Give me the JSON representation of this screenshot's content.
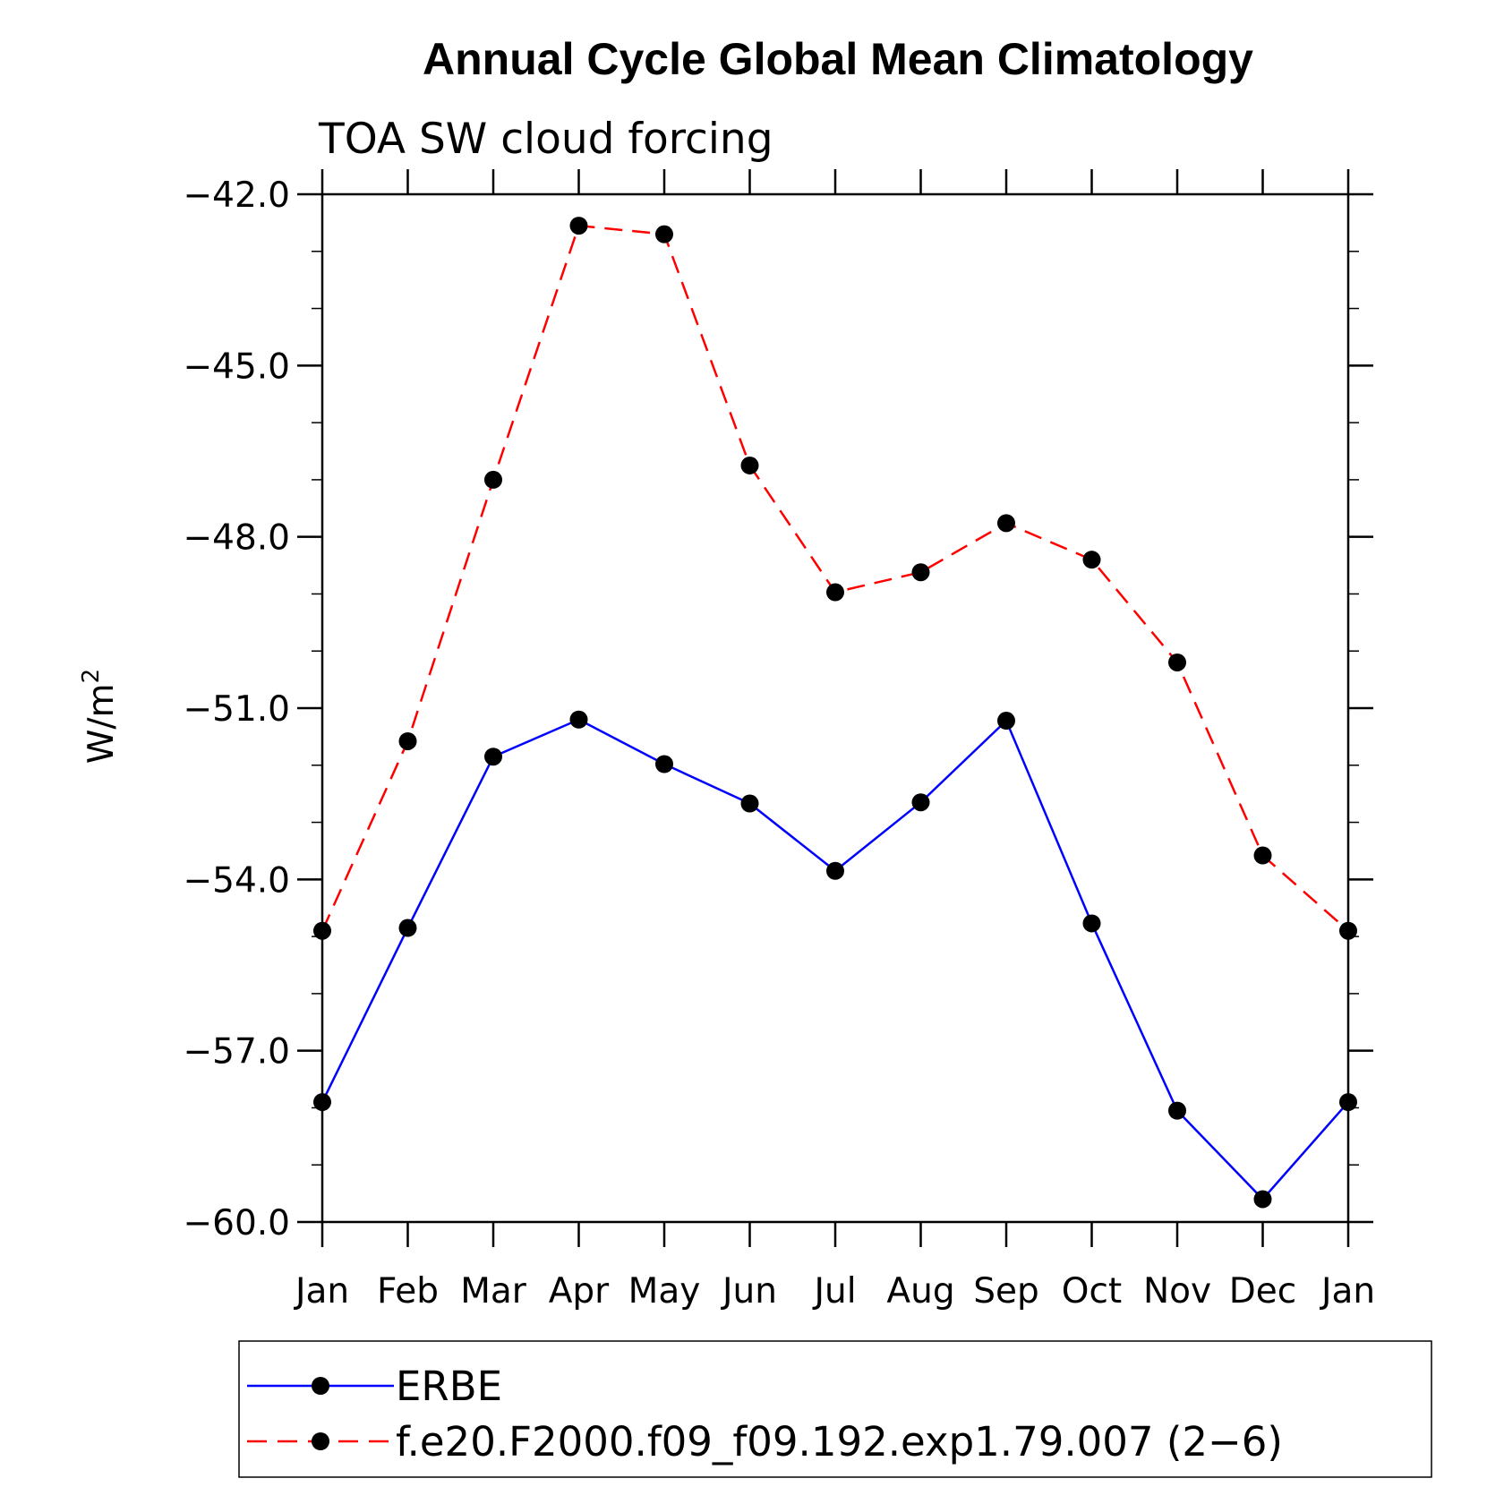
{
  "chart_data": {
    "type": "line",
    "title": "Annual Cycle Global Mean Climatology",
    "subtitle": "TOA SW cloud forcing",
    "ylabel": "W/m",
    "ylabel_superscript": "2",
    "xlabel": "",
    "categories": [
      "Jan",
      "Feb",
      "Mar",
      "Apr",
      "May",
      "Jun",
      "Jul",
      "Aug",
      "Sep",
      "Oct",
      "Nov",
      "Dec",
      "Jan"
    ],
    "ylim": [
      -60.0,
      -42.0
    ],
    "yticks": [
      -60.0,
      -57.0,
      -54.0,
      -51.0,
      -48.0,
      -45.0,
      -42.0
    ],
    "ytick_labels": [
      "−60.0",
      "−57.0",
      "−54.0",
      "−51.0",
      "−48.0",
      "−45.0",
      "−42.0"
    ],
    "grid": false,
    "legend_position": "bottom",
    "series": [
      {
        "name": "ERBE",
        "color": "#0000ff",
        "dash": "solid",
        "marker": "filled-circle",
        "values": [
          -57.9,
          -54.85,
          -51.85,
          -51.2,
          -51.98,
          -52.67,
          -53.85,
          -52.65,
          -51.22,
          -54.77,
          -58.05,
          -59.6,
          -57.9
        ]
      },
      {
        "name": "f.e20.F2000.f09_f09.192.exp1.79.007 (2−6)",
        "color": "#ff0000",
        "dash": "dashed",
        "marker": "filled-circle",
        "values": [
          -54.9,
          -51.58,
          -47.0,
          -42.55,
          -42.7,
          -46.75,
          -48.97,
          -48.62,
          -47.76,
          -48.4,
          -50.2,
          -53.58,
          -54.9
        ]
      }
    ]
  }
}
